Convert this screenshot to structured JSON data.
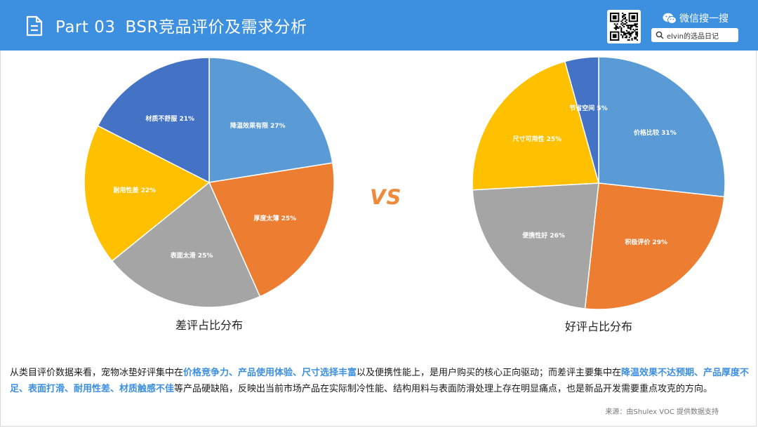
{
  "header": {
    "part_label": "Part 03",
    "title": "BSR竞品评价及需求分析",
    "wechat_label": "微信搜一搜",
    "search_text": "elvin的选品日记",
    "colors": {
      "header_bg": "#3d8fe0"
    }
  },
  "vs_label": "VS",
  "chart_data": [
    {
      "type": "pie",
      "title": "差评占比分布",
      "slices": [
        {
          "label": "降温效果有限",
          "value": 27,
          "color": "#5b9bd5"
        },
        {
          "label": "厚度太薄",
          "value": 25,
          "color": "#ed7d31"
        },
        {
          "label": "表面太滑",
          "value": 25,
          "color": "#a5a5a5"
        },
        {
          "label": "耐用性差",
          "value": 22,
          "color": "#ffc000"
        },
        {
          "label": "材质不舒服",
          "value": 21,
          "color": "#4472c4"
        }
      ]
    },
    {
      "type": "pie",
      "title": "好评占比分布",
      "slices": [
        {
          "label": "价格比较",
          "value": 31,
          "color": "#5b9bd5"
        },
        {
          "label": "积极评价",
          "value": 29,
          "color": "#ed7d31"
        },
        {
          "label": "便携性好",
          "value": 26,
          "color": "#a5a5a5"
        },
        {
          "label": "尺寸可用性",
          "value": 25,
          "color": "#ffc000"
        },
        {
          "label": "节省空间",
          "value": 5,
          "color": "#4472c4"
        }
      ]
    }
  ],
  "summary": {
    "p1": "从类目评价数据来看，宠物冰垫好评集中在",
    "h1": "价格竞争力、产品使用体验、尺寸选择丰富",
    "p2": "以及便携性能上，是用户购买的核心正向驱动；而差评主要集中在",
    "h2": "降温效果不达预期、产品厚度不足、表面打滑、耐用性差、材质触感不佳",
    "p3": "等产品硬缺陷，反映出当前市场产品在实际制冷性能、结构用料与表面防滑处理上存在明显痛点，也是新品开发需要重点攻克的方向。"
  },
  "source": "来源：由Shulex VOC 提供数据支持"
}
